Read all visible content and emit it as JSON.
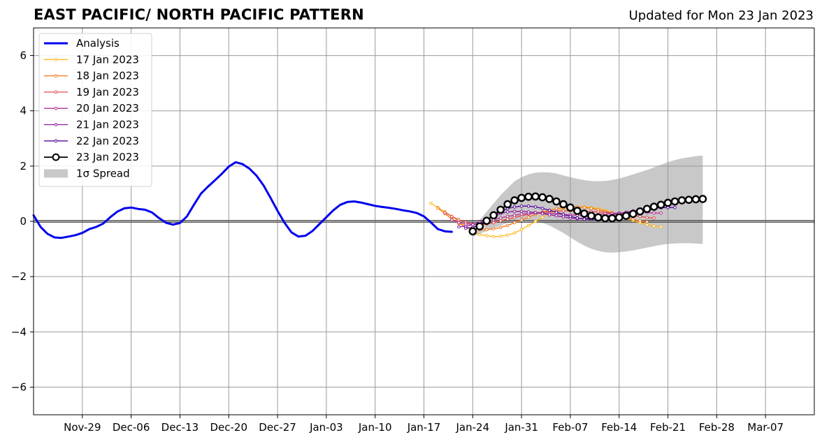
{
  "title": "EAST PACIFIC/ NORTH PACIFIC PATTERN",
  "subtitle": "Updated for Mon 23 Jan 2023",
  "chart_data": {
    "type": "line",
    "ylim": [
      -7,
      7
    ],
    "yticks": [
      -6,
      -4,
      -2,
      0,
      2,
      4,
      6
    ],
    "ytick_labels": [
      "−6",
      "−4",
      "−2",
      "0",
      "2",
      "4",
      "6"
    ],
    "xlim": [
      "2022-11-22",
      "2023-03-14"
    ],
    "xticks": [
      "2022-11-29",
      "2022-12-06",
      "2022-12-13",
      "2022-12-20",
      "2022-12-27",
      "2023-01-03",
      "2023-01-10",
      "2023-01-17",
      "2023-01-24",
      "2023-01-31",
      "2023-02-07",
      "2023-02-14",
      "2023-02-21",
      "2023-02-28",
      "2023-03-07"
    ],
    "xtick_labels": [
      "Nov-29",
      "Dec-06",
      "Dec-13",
      "Dec-20",
      "Dec-27",
      "Jan-03",
      "Jan-10",
      "Jan-17",
      "Jan-24",
      "Jan-31",
      "Feb-07",
      "Feb-14",
      "Feb-21",
      "Feb-28",
      "Mar-07"
    ],
    "grid": true,
    "legend_position": "top-left",
    "legend": [
      "Analysis",
      "17 Jan 2023",
      "18 Jan 2023",
      "19 Jan 2023",
      "20 Jan 2023",
      "21 Jan 2023",
      "22 Jan 2023",
      "23 Jan 2023",
      "1σ Spread"
    ],
    "series": [
      {
        "name": "Analysis",
        "color": "#0000ee",
        "start": "2022-11-22",
        "values": [
          0.22,
          -0.2,
          -0.45,
          -0.58,
          -0.6,
          -0.55,
          -0.5,
          -0.42,
          -0.28,
          -0.2,
          -0.08,
          0.15,
          0.35,
          0.47,
          0.5,
          0.45,
          0.42,
          0.32,
          0.12,
          -0.05,
          -0.12,
          -0.06,
          0.18,
          0.6,
          1.0,
          1.25,
          1.48,
          1.72,
          1.98,
          2.14,
          2.07,
          1.9,
          1.65,
          1.3,
          0.85,
          0.38,
          -0.05,
          -0.4,
          -0.55,
          -0.52,
          -0.35,
          -0.1,
          0.15,
          0.4,
          0.6,
          0.7,
          0.72,
          0.68,
          0.62,
          0.56,
          0.52,
          0.49,
          0.45,
          0.4,
          0.36,
          0.3,
          0.18,
          -0.04,
          -0.28,
          -0.36,
          -0.38
        ]
      },
      {
        "name": "17 Jan 2023",
        "color": "#fbb61a",
        "start": "2023-01-18",
        "values": [
          0.65,
          0.5,
          0.35,
          0.18,
          0.0,
          -0.2,
          -0.38,
          -0.48,
          -0.52,
          -0.55,
          -0.54,
          -0.5,
          -0.42,
          -0.3,
          -0.15,
          0.0,
          0.15,
          0.28,
          0.38,
          0.45,
          0.5,
          0.52,
          0.52,
          0.5,
          0.46,
          0.4,
          0.32,
          0.22,
          0.12,
          0.03,
          -0.05,
          -0.12,
          -0.17,
          -0.2
        ]
      },
      {
        "name": "18 Jan 2023",
        "color": "#f3761b",
        "start": "2023-01-19",
        "values": [
          0.48,
          0.28,
          0.08,
          -0.08,
          -0.2,
          -0.28,
          -0.3,
          -0.3,
          -0.27,
          -0.22,
          -0.15,
          -0.05,
          0.05,
          0.15,
          0.25,
          0.33,
          0.4,
          0.46,
          0.5,
          0.52,
          0.52,
          0.5,
          0.47,
          0.42,
          0.36,
          0.3,
          0.22,
          0.14,
          0.07,
          0.02,
          -0.02
        ]
      },
      {
        "name": "19 Jan 2023",
        "color": "#e1484e",
        "start": "2023-01-20",
        "values": [
          0.32,
          0.18,
          0.06,
          -0.04,
          -0.1,
          -0.12,
          -0.1,
          -0.05,
          0.02,
          0.08,
          0.14,
          0.2,
          0.26,
          0.3,
          0.33,
          0.35,
          0.37,
          0.38,
          0.38,
          0.37,
          0.36,
          0.35,
          0.34,
          0.32,
          0.3,
          0.28,
          0.25,
          0.22,
          0.18,
          0.14,
          0.12
        ]
      },
      {
        "name": "20 Jan 2023",
        "color": "#b52f8c",
        "start": "2023-01-21",
        "values": [
          0.05,
          -0.05,
          -0.1,
          -0.1,
          -0.05,
          0.0,
          0.06,
          0.12,
          0.18,
          0.22,
          0.26,
          0.28,
          0.3,
          0.3,
          0.29,
          0.27,
          0.25,
          0.23,
          0.22,
          0.22,
          0.23,
          0.25,
          0.27,
          0.29,
          0.3,
          0.32,
          0.32,
          0.33,
          0.32,
          0.3,
          0.3
        ]
      },
      {
        "name": "21 Jan 2023",
        "color": "#8a1a9b",
        "start": "2023-01-22",
        "values": [
          -0.2,
          -0.18,
          -0.12,
          -0.03,
          0.08,
          0.18,
          0.28,
          0.34,
          0.36,
          0.36,
          0.34,
          0.32,
          0.28,
          0.24,
          0.2,
          0.16,
          0.12,
          0.1,
          0.1,
          0.11,
          0.14,
          0.18,
          0.23,
          0.28,
          0.33,
          0.38,
          0.42,
          0.46,
          0.49,
          0.5,
          0.5
        ]
      },
      {
        "name": "22 Jan 2023",
        "color": "#56069a",
        "start": "2023-01-23",
        "values": [
          -0.25,
          -0.22,
          -0.12,
          0.05,
          0.22,
          0.36,
          0.46,
          0.52,
          0.55,
          0.55,
          0.52,
          0.47,
          0.4,
          0.33,
          0.25,
          0.18,
          0.12,
          0.08,
          0.07,
          0.08,
          0.1,
          0.14,
          0.2,
          0.27,
          0.33,
          0.39,
          0.44,
          0.47,
          0.49,
          0.5,
          0.5
        ]
      },
      {
        "name": "23 Jan 2023",
        "color": "#000000",
        "start": "2023-01-24",
        "values": [
          -0.36,
          -0.18,
          0.02,
          0.22,
          0.42,
          0.62,
          0.76,
          0.85,
          0.89,
          0.9,
          0.87,
          0.81,
          0.72,
          0.62,
          0.5,
          0.38,
          0.28,
          0.2,
          0.14,
          0.11,
          0.11,
          0.14,
          0.2,
          0.27,
          0.36,
          0.45,
          0.53,
          0.6,
          0.67,
          0.72,
          0.76,
          0.78,
          0.8,
          0.81
        ]
      }
    ],
    "spread": {
      "name": "1σ Spread",
      "color": "#c8c8c8",
      "start": "2023-01-24",
      "upper": [
        -0.2,
        0.05,
        0.35,
        0.65,
        0.95,
        1.2,
        1.45,
        1.6,
        1.7,
        1.76,
        1.78,
        1.77,
        1.73,
        1.66,
        1.6,
        1.54,
        1.49,
        1.46,
        1.45,
        1.46,
        1.5,
        1.55,
        1.62,
        1.7,
        1.78,
        1.86,
        1.95,
        2.05,
        2.14,
        2.22,
        2.28,
        2.32,
        2.36,
        2.38
      ],
      "lower": [
        -0.55,
        -0.45,
        -0.35,
        -0.25,
        -0.15,
        -0.05,
        0.02,
        0.05,
        0.05,
        0.02,
        -0.05,
        -0.15,
        -0.28,
        -0.42,
        -0.58,
        -0.74,
        -0.88,
        -0.99,
        -1.07,
        -1.12,
        -1.13,
        -1.12,
        -1.09,
        -1.05,
        -1.0,
        -0.95,
        -0.9,
        -0.85,
        -0.82,
        -0.8,
        -0.79,
        -0.79,
        -0.8,
        -0.82
      ]
    }
  }
}
